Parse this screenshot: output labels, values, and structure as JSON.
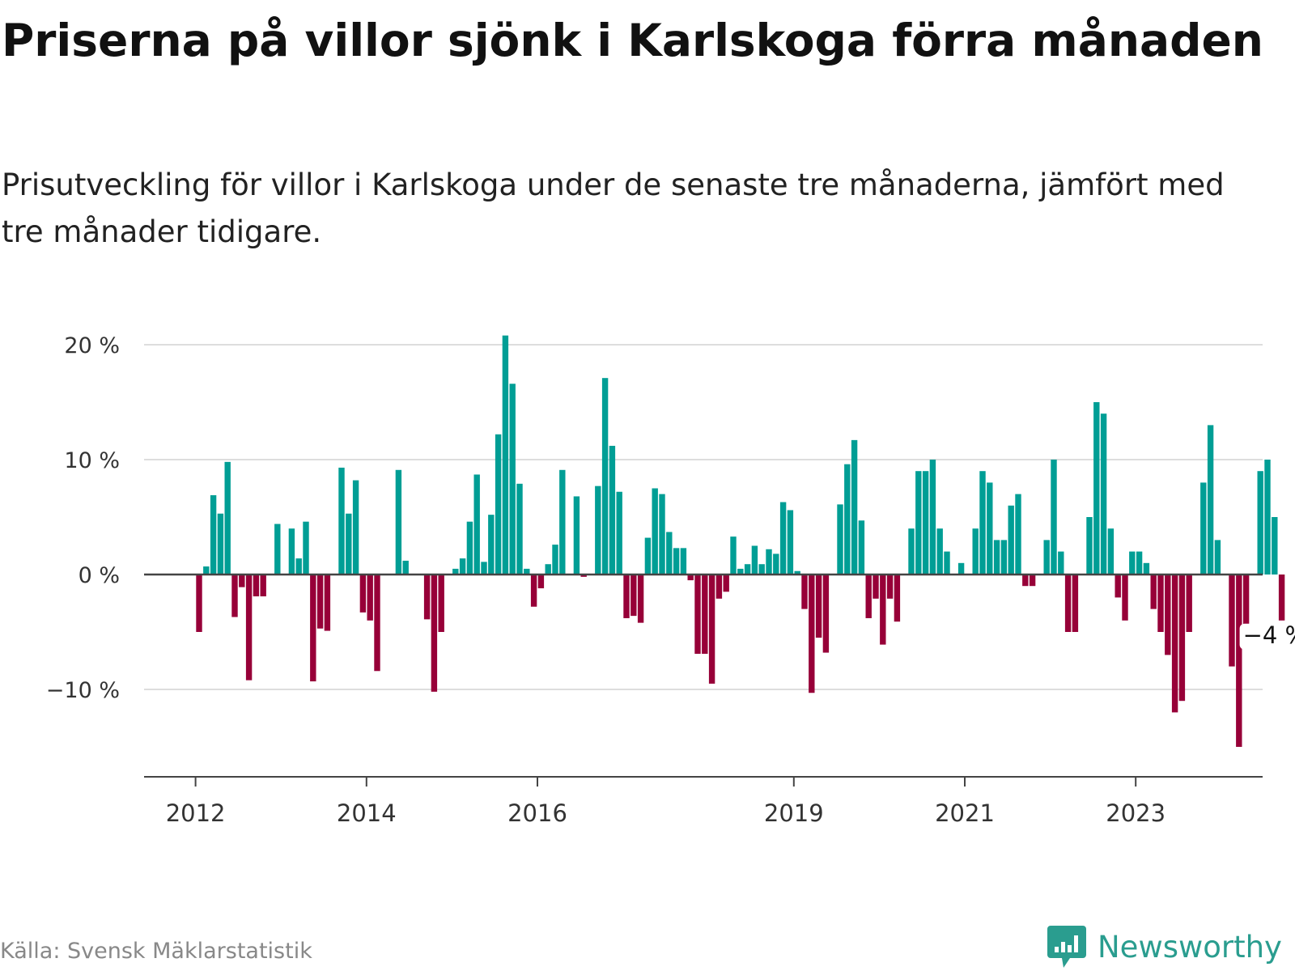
{
  "title": "Priserna på villor sjönk i Karlskoga förra månaden",
  "subtitle": "Prisutveckling för villor i Karlskoga under de senaste tre månaderna, jämfört med tre månader tidigare.",
  "source": "Källa: Svensk Mäklarstatistik",
  "logo": {
    "text": "Newsworthy",
    "icon": "newsworthy-bar-chart-icon"
  },
  "colors": {
    "positive": "#009e95",
    "negative": "#970038",
    "grid": "#dddddd",
    "axis": "#444444"
  },
  "chart_data": {
    "type": "bar",
    "xlabel": "",
    "ylabel": "",
    "ylim": [
      -17,
      21
    ],
    "grid": true,
    "unit": "%",
    "start": "2012-01",
    "yticks": [
      {
        "value": 20,
        "label": "20 %"
      },
      {
        "value": 10,
        "label": "10 %"
      },
      {
        "value": 0,
        "label": "0 %"
      },
      {
        "value": -10,
        "label": "−10 %"
      }
    ],
    "xticks": [
      {
        "label": "2012",
        "index": 0
      },
      {
        "label": "2014",
        "index": 24
      },
      {
        "label": "2016",
        "index": 48
      },
      {
        "label": "2019",
        "index": 84
      },
      {
        "label": "2021",
        "index": 108
      },
      {
        "label": "2023",
        "index": 132
      }
    ],
    "values": [
      -5.0,
      0.7,
      6.9,
      5.3,
      9.8,
      -3.7,
      -1.1,
      -9.2,
      -1.9,
      -1.9,
      0.0,
      4.4,
      0.0,
      4.0,
      1.4,
      4.6,
      -9.3,
      -4.7,
      -4.9,
      0.0,
      9.3,
      5.3,
      8.2,
      -3.3,
      -4.0,
      -8.4,
      0.0,
      0.0,
      9.1,
      1.2,
      0.0,
      0.0,
      -3.9,
      -10.2,
      -5.0,
      0.0,
      0.5,
      1.4,
      4.6,
      8.7,
      1.1,
      5.2,
      12.2,
      20.8,
      16.6,
      7.9,
      0.5,
      -2.8,
      -1.2,
      0.9,
      2.6,
      9.1,
      0.0,
      6.8,
      -0.2,
      0.0,
      7.7,
      17.1,
      11.2,
      7.2,
      -3.8,
      -3.6,
      -4.2,
      3.2,
      7.5,
      7.0,
      3.7,
      2.3,
      2.3,
      -0.5,
      -6.9,
      -6.9,
      -9.5,
      -2.1,
      -1.5,
      3.3,
      0.5,
      0.9,
      2.5,
      0.9,
      2.2,
      1.8,
      6.3,
      5.6,
      0.3,
      -3.0,
      -10.3,
      -5.5,
      -6.8,
      0.0,
      6.1,
      9.6,
      11.7,
      4.7,
      -3.8,
      -2.1,
      -6.1,
      -2.1,
      -4.1,
      0.0,
      4.0,
      9.0,
      9.0,
      10.0,
      4.0,
      2.0,
      0.0,
      1.0,
      0.0,
      4.0,
      9.0,
      8.0,
      3.0,
      3.0,
      6.0,
      7.0,
      -1.0,
      -1.0,
      0.0,
      3.0,
      10.0,
      2.0,
      -5.0,
      -5.0,
      0.0,
      5.0,
      15.0,
      14.0,
      4.0,
      -2.0,
      -4.0,
      2.0,
      2.0,
      1.0,
      -3.0,
      -5.0,
      -7.0,
      -12.0,
      -11.0,
      -5.0,
      0.0,
      8.0,
      13.0,
      3.0,
      0.0,
      -8.0,
      -15.0,
      -5.5,
      0.0,
      9.0,
      10.0,
      5.0,
      -4.0
    ],
    "annotations": [
      {
        "index": 152,
        "label": "−4 %"
      }
    ]
  }
}
